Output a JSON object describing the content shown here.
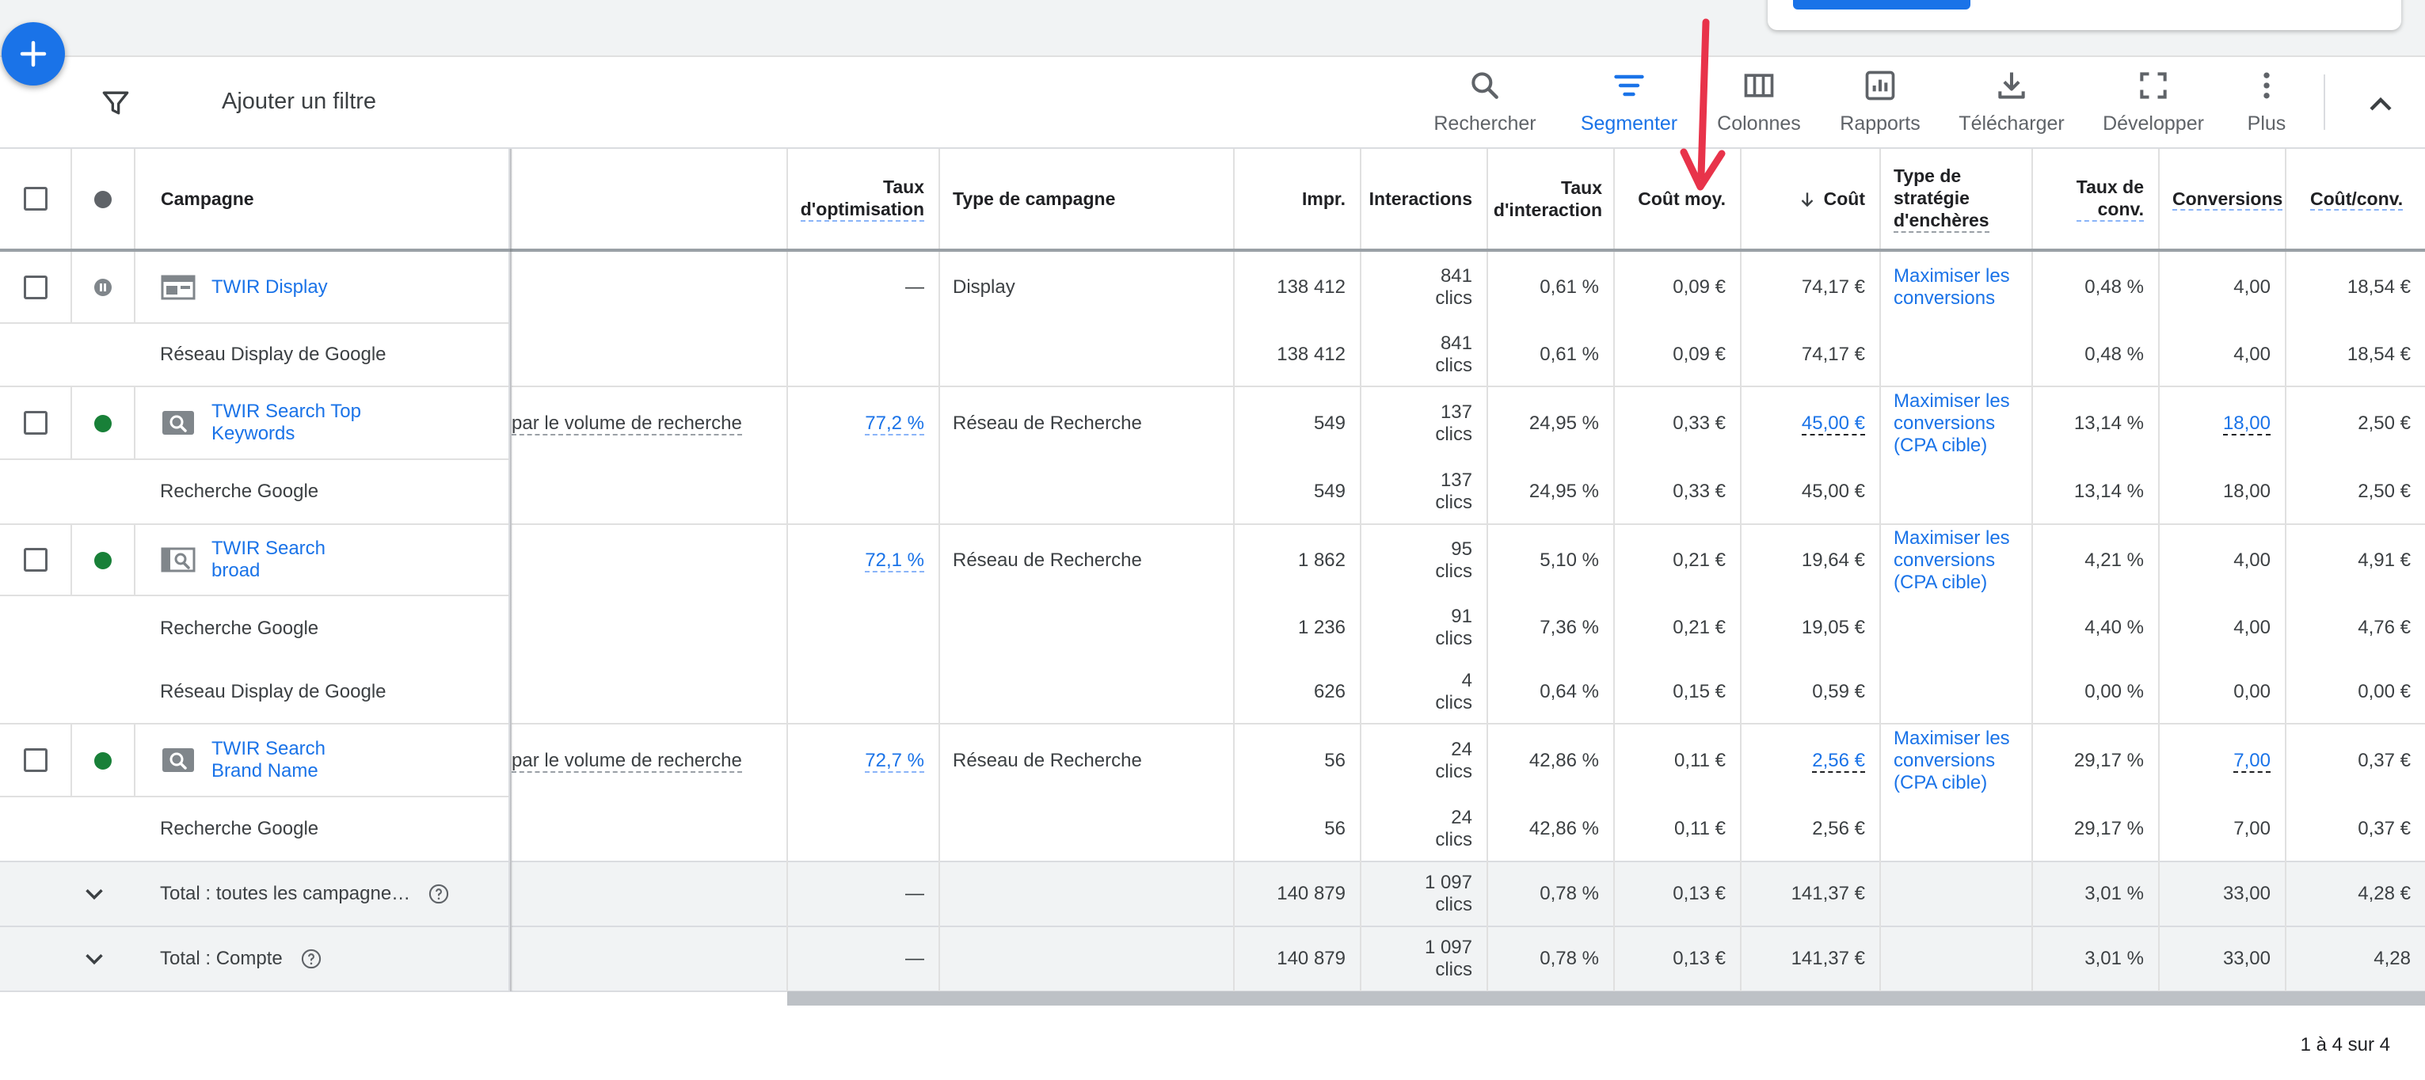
{
  "toolbar": {
    "filter_label": "Ajouter un filtre",
    "tools": [
      {
        "label": "Rechercher",
        "icon": "search-icon"
      },
      {
        "label": "Segmenter",
        "icon": "segment-icon"
      },
      {
        "label": "Colonnes",
        "icon": "columns-icon"
      },
      {
        "label": "Rapports",
        "icon": "reports-icon"
      },
      {
        "label": "Télécharger",
        "icon": "download-icon"
      },
      {
        "label": "Développer",
        "icon": "expand-icon"
      },
      {
        "label": "Plus",
        "icon": "more-vert-icon"
      }
    ]
  },
  "columns": {
    "campaign": "Campagne",
    "opt_rate": [
      "Taux",
      "d'optimisation"
    ],
    "campaign_type": "Type de campagne",
    "impr": "Impr.",
    "interactions": "Interactions",
    "interaction_rate": [
      "Taux",
      "d'interaction"
    ],
    "avg_cost": "Coût moy.",
    "cost": "Coût",
    "bid_strategy": [
      "Type de",
      "stratégie",
      "d'enchères"
    ],
    "conv_rate": [
      "Taux de",
      "conv."
    ],
    "conversions": "Conversions",
    "cost_conv": "Coût/conv."
  },
  "rows": [
    {
      "kind": "campaign",
      "status": "paused",
      "type_icon": "display-campaign-icon",
      "name": "TWIR Display",
      "budget": "",
      "opt": "—",
      "ctype": "Display",
      "impr": "138 412",
      "inter_n": "841",
      "inter_u": "clics",
      "irate": "0,61 %",
      "avg": "0,09 €",
      "cost": "74,17 €",
      "bid": "Maximiser les conversions",
      "crate": "0,48 %",
      "conv": "4,00",
      "cpc": "18,54 €"
    },
    {
      "kind": "segment",
      "name": "Réseau Display de Google",
      "impr": "138 412",
      "inter_n": "841",
      "inter_u": "clics",
      "irate": "0,61 %",
      "avg": "0,09 €",
      "cost": "74,17 €",
      "crate": "0,48 %",
      "conv": "4,00",
      "cpc": "18,54 €"
    },
    {
      "kind": "campaign",
      "status": "enabled",
      "type_icon": "search-campaign-icon",
      "name": "TWIR Search Top Keywords",
      "budget": "par le volume de recherche",
      "opt": "77,2 %",
      "ctype": "Réseau de Recherche",
      "impr": "549",
      "inter_n": "137",
      "inter_u": "clics",
      "irate": "24,95 %",
      "avg": "0,33 €",
      "cost": "45,00 €",
      "bid": "Maximiser les conversions (CPA cible)",
      "crate": "13,14 %",
      "conv": "18,00",
      "cpc": "2,50 €"
    },
    {
      "kind": "segment",
      "name": "Recherche Google",
      "impr": "549",
      "inter_n": "137",
      "inter_u": "clics",
      "irate": "24,95 %",
      "avg": "0,33 €",
      "cost": "45,00 €",
      "crate": "13,14 %",
      "conv": "18,00",
      "cpc": "2,50 €"
    },
    {
      "kind": "campaign",
      "status": "enabled",
      "type_icon": "search-partners-campaign-icon",
      "name": "TWIR Search broad",
      "budget": "",
      "opt": "72,1 %",
      "ctype": "Réseau de Recherche",
      "impr": "1 862",
      "inter_n": "95",
      "inter_u": "clics",
      "irate": "5,10 %",
      "avg": "0,21 €",
      "cost": "19,64 €",
      "bid": "Maximiser les conversions (CPA cible)",
      "crate": "4,21 %",
      "conv": "4,00",
      "cpc": "4,91 €"
    },
    {
      "kind": "segment",
      "name": "Recherche Google",
      "impr": "1 236",
      "inter_n": "91",
      "inter_u": "clics",
      "irate": "7,36 %",
      "avg": "0,21 €",
      "cost": "19,05 €",
      "crate": "4,40 %",
      "conv": "4,00",
      "cpc": "4,76 €"
    },
    {
      "kind": "segment",
      "name": "Réseau Display de Google",
      "impr": "626",
      "inter_n": "4",
      "inter_u": "clics",
      "irate": "0,64 %",
      "avg": "0,15 €",
      "cost": "0,59 €",
      "crate": "0,00 %",
      "conv": "0,00",
      "cpc": "0,00 €"
    },
    {
      "kind": "campaign",
      "status": "enabled",
      "type_icon": "search-campaign-icon",
      "name": "TWIR Search Brand Name",
      "budget": "par le volume de recherche",
      "opt": "72,7 %",
      "ctype": "Réseau de Recherche",
      "impr": "56",
      "inter_n": "24",
      "inter_u": "clics",
      "irate": "42,86 %",
      "avg": "0,11 €",
      "cost": "2,56 €",
      "bid": "Maximiser les conversions (CPA cible)",
      "crate": "29,17 %",
      "conv": "7,00",
      "cpc": "0,37 €"
    },
    {
      "kind": "segment",
      "name": "Recherche Google",
      "impr": "56",
      "inter_n": "24",
      "inter_u": "clics",
      "irate": "42,86 %",
      "avg": "0,11 €",
      "cost": "2,56 €",
      "crate": "29,17 %",
      "conv": "7,00",
      "cpc": "0,37 €"
    }
  ],
  "totals": [
    {
      "label": "Total : toutes les campagne…",
      "opt": "—",
      "impr": "140 879",
      "inter_n": "1 097",
      "inter_u": "clics",
      "irate": "0,78 %",
      "avg": "0,13 €",
      "cost": "141,37 €",
      "crate": "3,01 %",
      "conv": "33,00",
      "cpc": "4,28 €"
    },
    {
      "label": "Total : Compte",
      "opt": "—",
      "impr": "140 879",
      "inter_n": "1 097",
      "inter_u": "clics",
      "irate": "0,78 %",
      "avg": "0,13 €",
      "cost": "141,37 €",
      "crate": "3,01 %",
      "conv": "33,00",
      "cpc": "4,28"
    }
  ],
  "pager": "1 à 4 sur 4",
  "colors": {
    "accent": "#1a73e8",
    "enabled": "#188038",
    "annotation_arrow": "#e8334a"
  }
}
